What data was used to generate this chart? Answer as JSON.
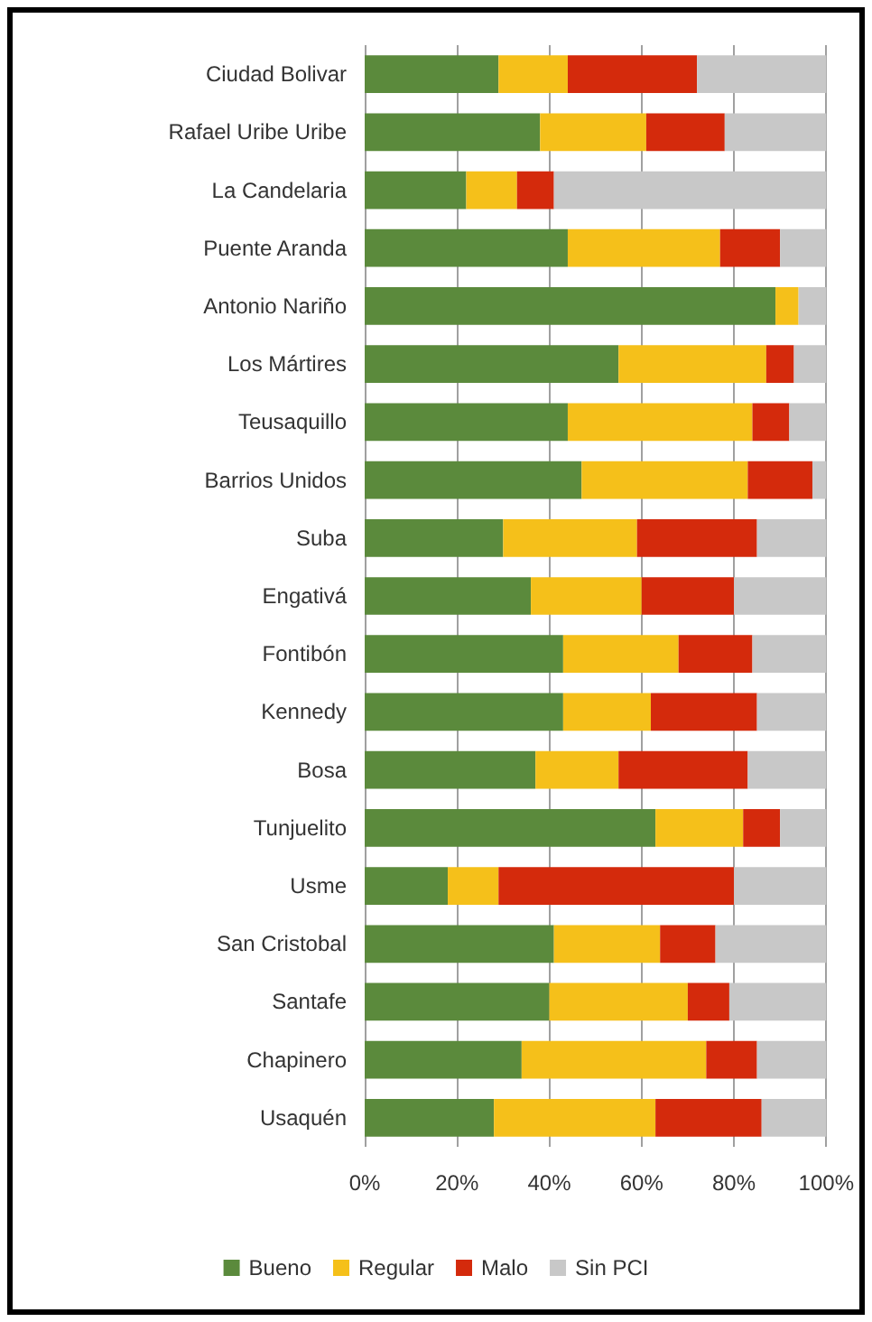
{
  "chart_data": {
    "type": "bar",
    "orientation": "horizontal",
    "stacked": true,
    "categories": [
      "Ciudad Bolivar",
      "Rafael Uribe Uribe",
      "La Candelaria",
      "Puente Aranda",
      "Antonio Nariño",
      "Los Mártires",
      "Teusaquillo",
      "Barrios Unidos",
      "Suba",
      "Engativá",
      "Fontibón",
      "Kennedy",
      "Bosa",
      "Tunjuelito",
      "Usme",
      "San Cristobal",
      "Santafe",
      "Chapinero",
      "Usaquén"
    ],
    "series": [
      {
        "name": "Bueno",
        "color": "#5b8a3c",
        "values": [
          29,
          38,
          22,
          44,
          89,
          55,
          44,
          47,
          30,
          36,
          43,
          43,
          37,
          63,
          18,
          41,
          40,
          34,
          28
        ]
      },
      {
        "name": "Regular",
        "color": "#f5c01a",
        "values": [
          15,
          23,
          11,
          33,
          5,
          32,
          40,
          36,
          29,
          24,
          25,
          19,
          18,
          19,
          11,
          23,
          30,
          40,
          35
        ]
      },
      {
        "name": "Malo",
        "color": "#d42a0c",
        "values": [
          28,
          17,
          8,
          13,
          0,
          6,
          8,
          14,
          26,
          20,
          16,
          23,
          28,
          8,
          51,
          12,
          9,
          11,
          23
        ]
      },
      {
        "name": "Sin PCI",
        "color": "#c8c8c8",
        "values": [
          28,
          22,
          59,
          10,
          6,
          7,
          8,
          3,
          15,
          20,
          16,
          15,
          17,
          10,
          20,
          24,
          21,
          15,
          14
        ]
      }
    ],
    "xlim": [
      0,
      100
    ],
    "xticks": [
      {
        "value": 0,
        "label": "0%"
      },
      {
        "value": 20,
        "label": "20%"
      },
      {
        "value": 40,
        "label": "40%"
      },
      {
        "value": 60,
        "label": "60%"
      },
      {
        "value": 80,
        "label": "80%"
      },
      {
        "value": 100,
        "label": "100%"
      }
    ],
    "grid": "x",
    "legend": "bottom"
  }
}
